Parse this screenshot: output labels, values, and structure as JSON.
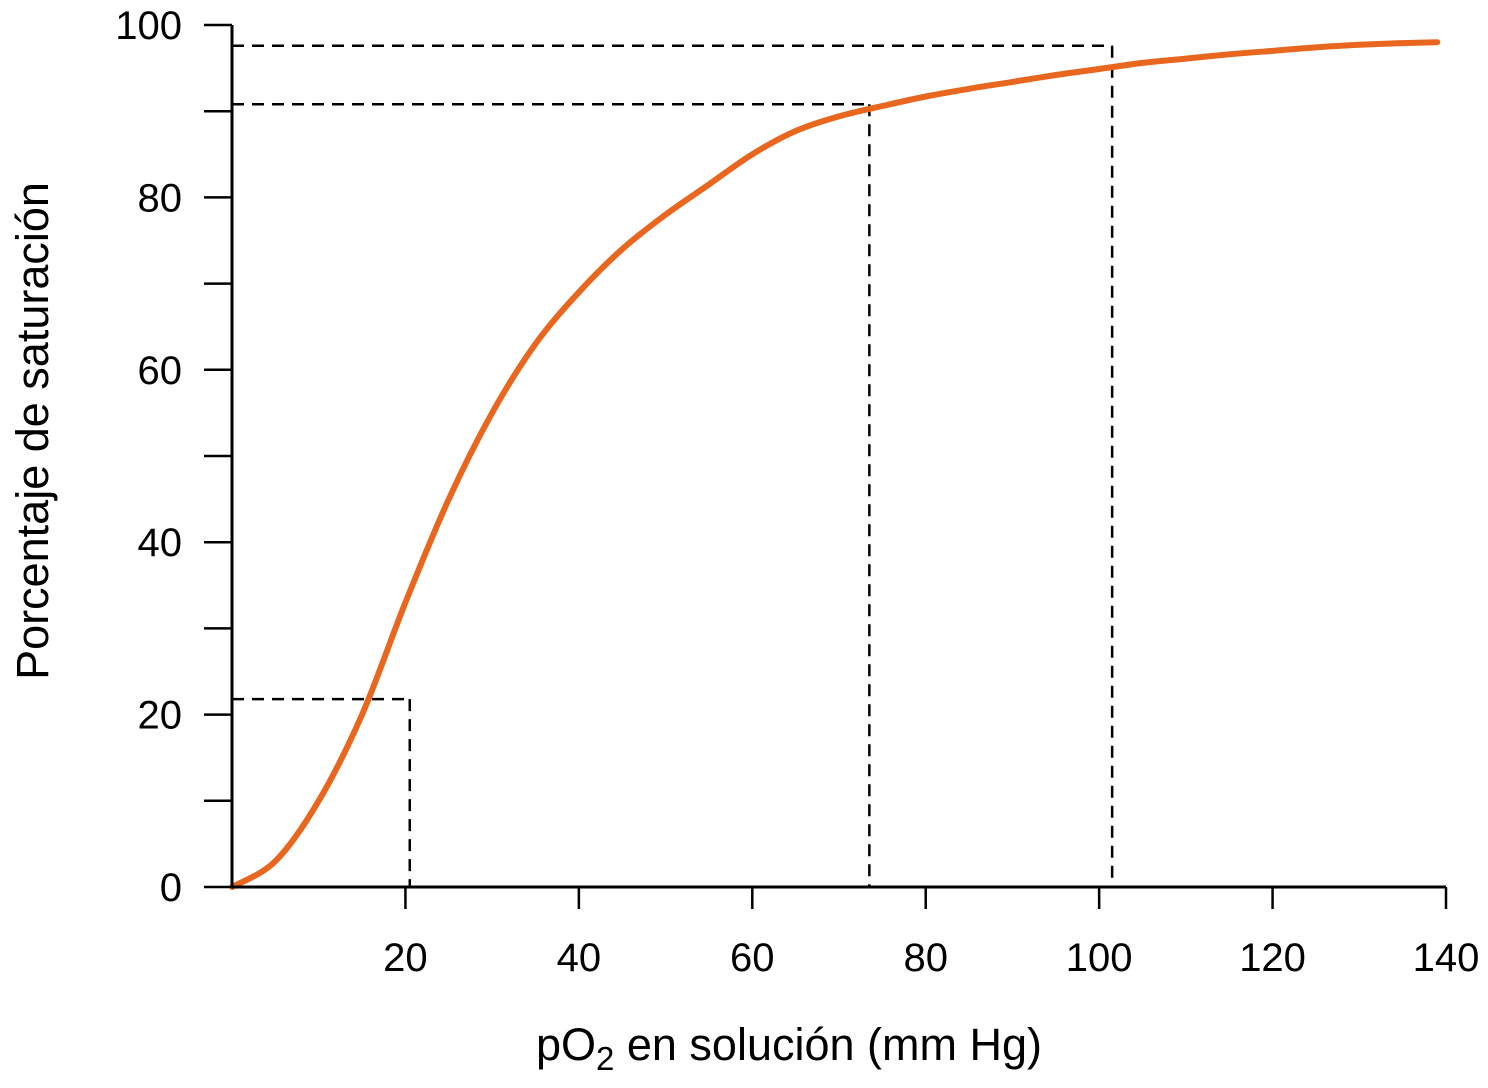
{
  "chart_data": {
    "type": "line",
    "xlabel": {
      "prefix": "pO",
      "sub": "2",
      "suffix": " en solución (mm Hg)"
    },
    "ylabel": "Porcentaje de saturación",
    "xlim": [
      0,
      140
    ],
    "ylim": [
      0,
      100
    ],
    "x_ticks": [
      20,
      40,
      60,
      80,
      100,
      120,
      140
    ],
    "y_ticks_major": [
      0,
      20,
      40,
      60,
      80,
      100
    ],
    "y_ticks_minor": [
      10,
      30,
      50,
      70,
      90
    ],
    "grid": false,
    "series": [
      {
        "color": "#e8661e",
        "x": [
          0,
          5,
          10,
          15,
          20,
          25,
          30,
          35,
          40,
          45,
          50,
          55,
          60,
          65,
          70,
          75,
          80,
          85,
          90,
          95,
          100,
          105,
          110,
          115,
          120,
          125,
          130,
          135,
          139
        ],
        "y": [
          0,
          3,
          10,
          20,
          33,
          45,
          55,
          63,
          69,
          74,
          78,
          81.5,
          85,
          87.7,
          89.4,
          90.6,
          91.7,
          92.6,
          93.4,
          94.2,
          94.9,
          95.6,
          96.1,
          96.6,
          97.0,
          97.4,
          97.7,
          97.9,
          98.0
        ]
      }
    ],
    "reference_lines": [
      {
        "x": 20.5,
        "y": 21.8
      },
      {
        "x": 73.5,
        "y": 90.8
      },
      {
        "x": 101.5,
        "y": 97.6
      }
    ]
  }
}
